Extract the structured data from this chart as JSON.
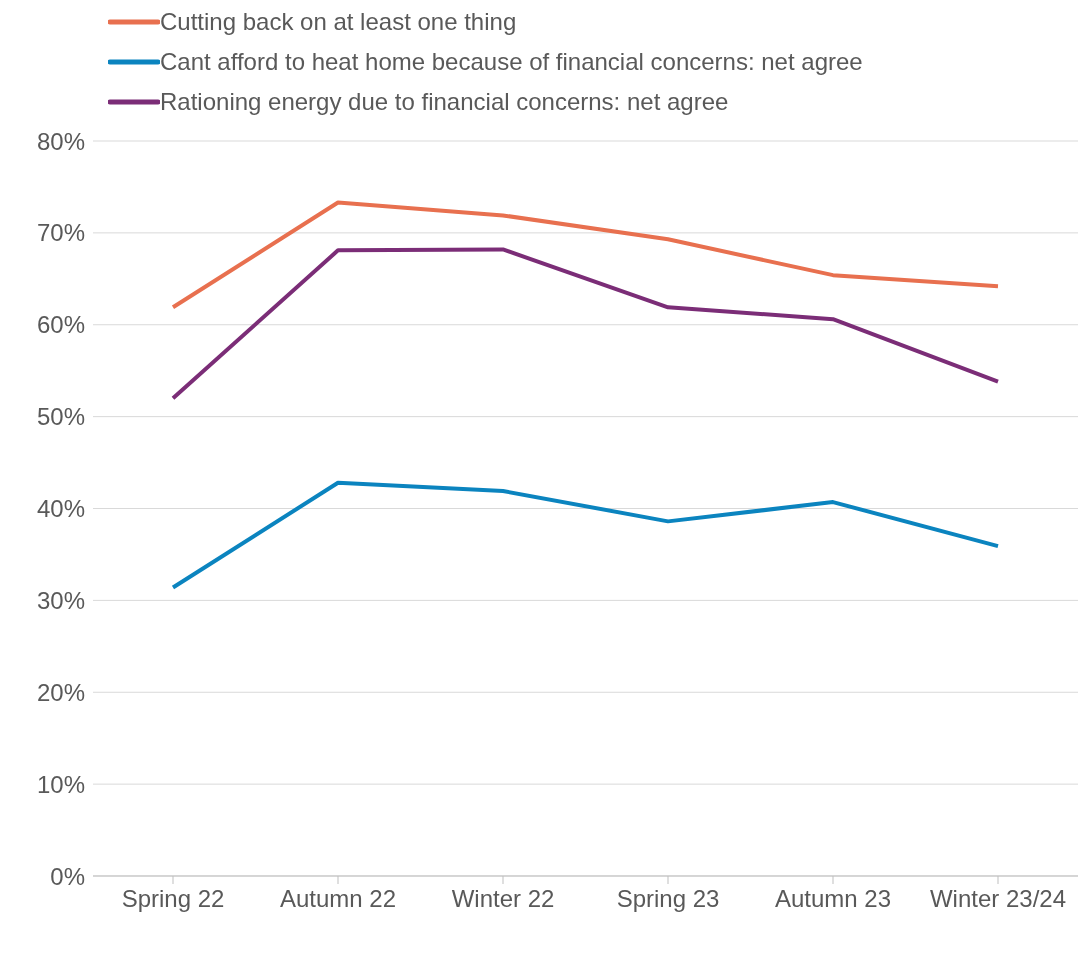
{
  "chart_data": {
    "type": "line",
    "categories": [
      "Spring 22",
      "Autumn 22",
      "Winter 22",
      "Spring 23",
      "Autumn 23",
      "Winter 23/24"
    ],
    "series": [
      {
        "name": "Cutting back on at least one thing",
        "color": "#e8704f",
        "values": [
          61.9,
          73.3,
          71.9,
          69.3,
          65.4,
          64.2
        ]
      },
      {
        "name": "Cant afford to heat home because of financial concerns: net agree",
        "color": "#0b84bf",
        "values": [
          31.4,
          42.8,
          41.9,
          38.6,
          40.7,
          35.9
        ]
      },
      {
        "name": "Rationing energy due to financial concerns: net agree",
        "color": "#7b2d77",
        "values": [
          52.0,
          68.1,
          68.2,
          61.9,
          60.6,
          53.8
        ]
      }
    ],
    "ylim": [
      0,
      80
    ],
    "yticks": [
      {
        "value": 0,
        "label": "0%"
      },
      {
        "value": 10,
        "label": "10%"
      },
      {
        "value": 20,
        "label": "20%"
      },
      {
        "value": 30,
        "label": "30%"
      },
      {
        "value": 40,
        "label": "40%"
      },
      {
        "value": 50,
        "label": "50%"
      },
      {
        "value": 60,
        "label": "60%"
      },
      {
        "value": 70,
        "label": "70%"
      },
      {
        "value": 80,
        "label": "80%"
      }
    ],
    "grid": "y",
    "legend": "top left",
    "marker": "none",
    "line_style": "solid"
  }
}
